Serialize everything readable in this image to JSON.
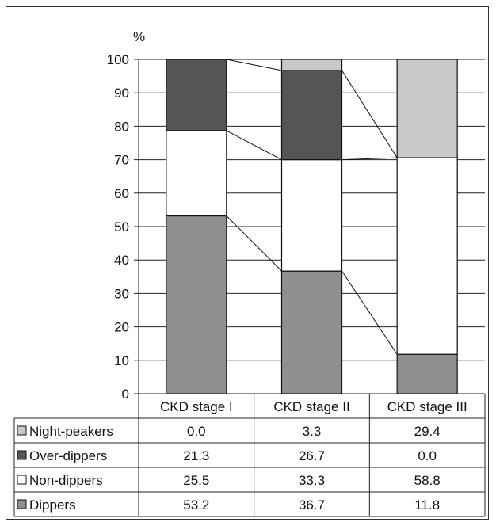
{
  "chart_data": {
    "type": "bar",
    "stacked": true,
    "y_unit_label": "%",
    "ylim": [
      0,
      100
    ],
    "yticks": [
      0,
      10,
      20,
      30,
      40,
      50,
      60,
      70,
      80,
      90,
      100
    ],
    "categories": [
      "CKD stage I",
      "CKD stage II",
      "CKD stage III"
    ],
    "series": [
      {
        "name": "Dippers",
        "values": [
          53.2,
          36.7,
          11.8
        ],
        "color": "#8f8f8f"
      },
      {
        "name": "Non-dippers",
        "values": [
          25.5,
          33.3,
          58.8
        ],
        "color": "#ffffff"
      },
      {
        "name": "Over-dippers",
        "values": [
          21.3,
          26.7,
          0.0
        ],
        "color": "#555555"
      },
      {
        "name": "Night-peakers",
        "values": [
          0.0,
          3.3,
          29.4
        ],
        "color": "#c8c8c8"
      }
    ],
    "table_rows": [
      {
        "label": "Night-peakers",
        "values": [
          "0.0",
          "3.3",
          "29.4"
        ],
        "color": "#c8c8c8"
      },
      {
        "label": "Over-dippers",
        "values": [
          "21.3",
          "26.7",
          "0.0"
        ],
        "color": "#555555"
      },
      {
        "label": "Non-dippers",
        "values": [
          "25.5",
          "33.3",
          "58.8"
        ],
        "color": "#ffffff"
      },
      {
        "label": "Dippers",
        "values": [
          "53.2",
          "36.7",
          "11.8"
        ],
        "color": "#8f8f8f"
      }
    ],
    "grid": true,
    "connector_lines": true
  }
}
